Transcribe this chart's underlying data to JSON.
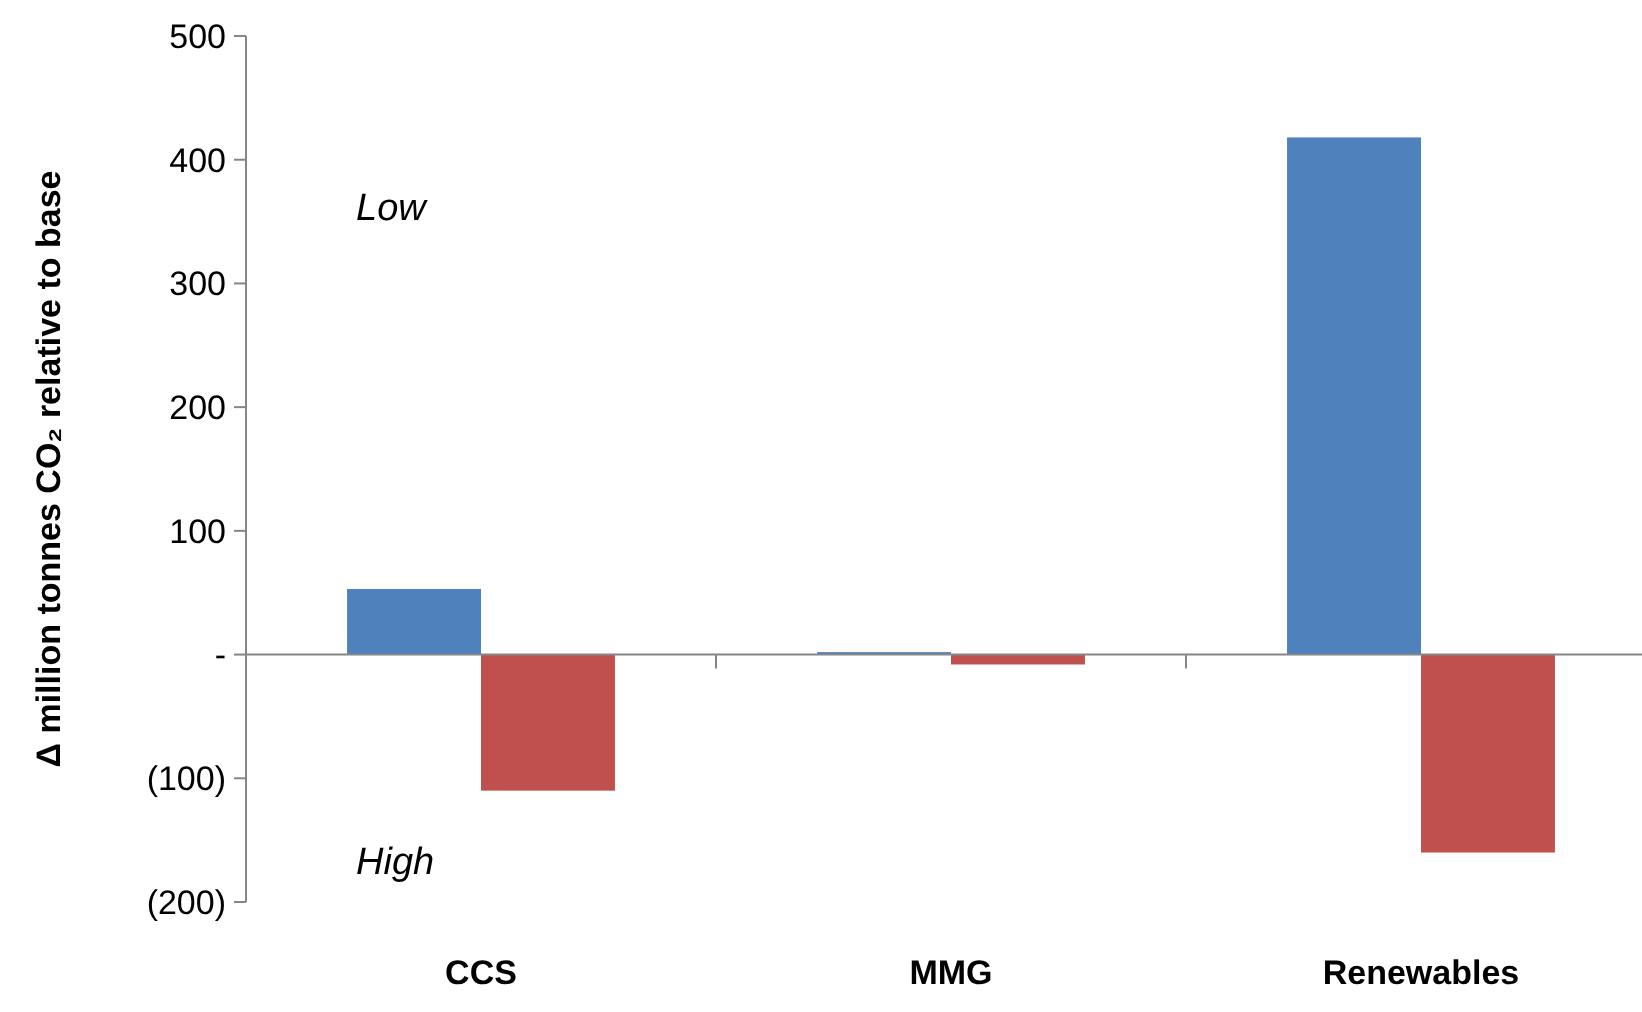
{
  "chart_data": {
    "type": "bar",
    "ylabel": "Δ million tonnes CO₂ relative to base",
    "categories": [
      "CCS",
      "MMG",
      "Renewables"
    ],
    "series": [
      {
        "color": "#4f81bd",
        "values": [
          53,
          2,
          418
        ]
      },
      {
        "color": "#c0504d",
        "values": [
          -110,
          -8,
          -160
        ]
      }
    ],
    "ylim": [
      -200,
      500
    ],
    "yticks": [
      {
        "value": -200,
        "label": "(200)"
      },
      {
        "value": -100,
        "label": "(100)"
      },
      {
        "value": 0,
        "label": "-"
      },
      100,
      200,
      300,
      400,
      500
    ],
    "annotations": [
      "Low",
      "High"
    ]
  }
}
